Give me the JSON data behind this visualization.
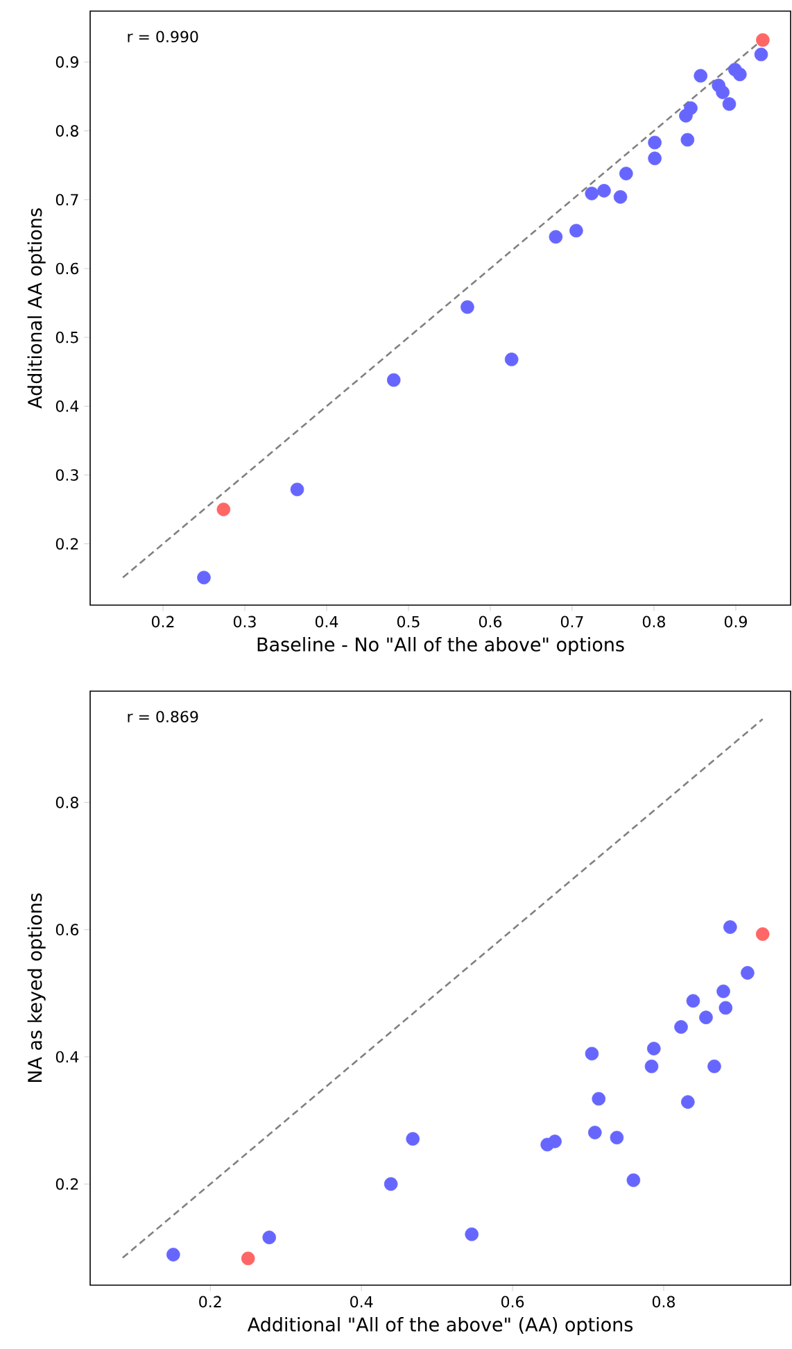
{
  "chart_data": [
    {
      "type": "scatter",
      "xlabel": "Baseline - No \"All of the above\" options",
      "ylabel": "Additional AA options",
      "marker": "circle",
      "xlim": [
        0.111,
        0.967
      ],
      "ylim": [
        0.111,
        0.974
      ],
      "xticks": [
        0.2,
        0.3,
        0.4,
        0.5,
        0.6,
        0.7,
        0.8,
        0.9
      ],
      "yticks": [
        0.2,
        0.3,
        0.4,
        0.5,
        0.6,
        0.7,
        0.8,
        0.9
      ],
      "annotations": [
        "r = 0.990"
      ],
      "series": [
        {
          "type": "line",
          "color": "#808080",
          "line_style": "dashed",
          "marker": "none",
          "x": [
            0.151,
            0.933
          ],
          "values": [
            0.151,
            0.933
          ]
        },
        {
          "color": "#6666ff",
          "x": [
            0.931,
            0.857,
            0.899,
            0.905,
            0.879,
            0.884,
            0.892,
            0.845,
            0.839,
            0.841,
            0.801,
            0.801,
            0.766,
            0.724,
            0.739,
            0.759,
            0.705,
            0.68,
            0.572,
            0.626,
            0.482,
            0.364,
            0.25
          ],
          "values": [
            0.911,
            0.88,
            0.889,
            0.882,
            0.866,
            0.856,
            0.839,
            0.833,
            0.822,
            0.787,
            0.783,
            0.76,
            0.738,
            0.709,
            0.713,
            0.704,
            0.655,
            0.646,
            0.544,
            0.468,
            0.438,
            0.279,
            0.151
          ]
        },
        {
          "color": "#ff6666",
          "x": [
            0.933,
            0.274
          ],
          "values": [
            0.932,
            0.25
          ]
        }
      ]
    },
    {
      "type": "scatter",
      "xlabel": "Additional \"All of the above\" (AA) options",
      "ylabel": "NA as keyed options",
      "marker": "circle",
      "xlim": [
        0.041,
        0.968
      ],
      "ylim": [
        0.041,
        0.975
      ],
      "xticks": [
        0.2,
        0.4,
        0.6,
        0.8
      ],
      "yticks": [
        0.2,
        0.4,
        0.6,
        0.8
      ],
      "annotations": [
        "r = 0.869"
      ],
      "series": [
        {
          "type": "line",
          "color": "#808080",
          "line_style": "dashed",
          "marker": "none",
          "x": [
            0.084,
            0.931
          ],
          "values": [
            0.084,
            0.931
          ]
        },
        {
          "color": "#6666ff",
          "x": [
            0.888,
            0.911,
            0.879,
            0.839,
            0.882,
            0.856,
            0.823,
            0.787,
            0.705,
            0.784,
            0.867,
            0.714,
            0.832,
            0.709,
            0.738,
            0.468,
            0.646,
            0.656,
            0.76,
            0.439,
            0.546,
            0.278,
            0.151
          ],
          "values": [
            0.604,
            0.532,
            0.503,
            0.488,
            0.477,
            0.462,
            0.447,
            0.413,
            0.405,
            0.385,
            0.385,
            0.334,
            0.329,
            0.281,
            0.273,
            0.271,
            0.262,
            0.267,
            0.206,
            0.2,
            0.121,
            0.116,
            0.089
          ]
        },
        {
          "color": "#ff6666",
          "x": [
            0.931,
            0.25
          ],
          "values": [
            0.593,
            0.083
          ]
        }
      ]
    }
  ]
}
